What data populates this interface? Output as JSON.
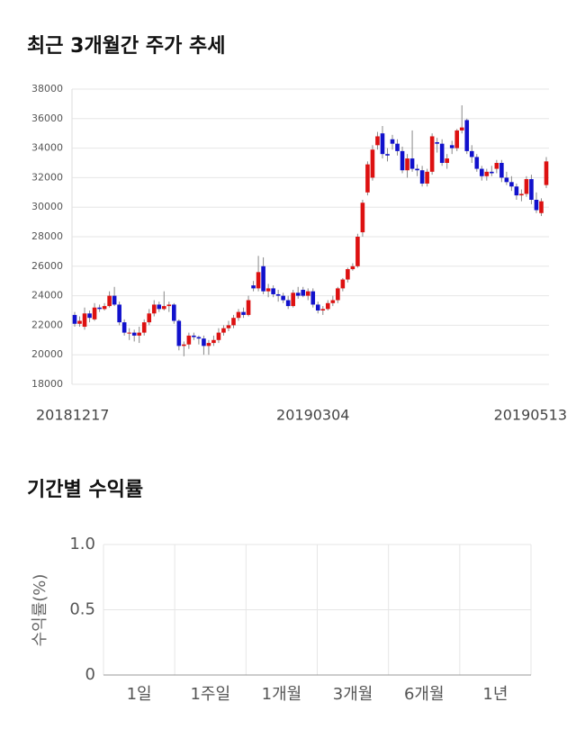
{
  "chart_data": [
    {
      "type": "candlestick",
      "title": "최근 3개월간 주가 추세",
      "up_color": "#dd1111",
      "down_color": "#1111cc",
      "grid": true,
      "ylim": [
        18000,
        38000
      ],
      "yticks": [
        18000,
        20000,
        22000,
        24000,
        26000,
        28000,
        30000,
        32000,
        34000,
        36000,
        38000
      ],
      "categories": [
        "20181217",
        null,
        null,
        null,
        null,
        null,
        null,
        null,
        null,
        null,
        null,
        null,
        null,
        null,
        null,
        null,
        null,
        null,
        null,
        null,
        null,
        null,
        null,
        null,
        null,
        null,
        null,
        null,
        null,
        null,
        null,
        null,
        null,
        null,
        null,
        null,
        null,
        null,
        null,
        null,
        null,
        null,
        null,
        null,
        null,
        null,
        null,
        null,
        "20190304",
        null,
        null,
        null,
        null,
        null,
        null,
        null,
        null,
        null,
        null,
        null,
        null,
        null,
        null,
        null,
        null,
        null,
        null,
        null,
        null,
        null,
        null,
        null,
        null,
        null,
        null,
        null,
        null,
        null,
        null,
        null,
        null,
        null,
        null,
        null,
        null,
        null,
        null,
        null,
        null,
        null,
        null,
        null,
        null,
        null,
        null,
        "20190513"
      ],
      "ohlc": [
        [
          22700,
          22900,
          21900,
          22100
        ],
        [
          22100,
          22600,
          21900,
          22300
        ],
        [
          21900,
          23200,
          21700,
          22800
        ],
        [
          22800,
          23000,
          22200,
          22500
        ],
        [
          22400,
          23500,
          22300,
          23200
        ],
        [
          23200,
          23400,
          22900,
          23100
        ],
        [
          23100,
          23500,
          23000,
          23300
        ],
        [
          23300,
          24300,
          23200,
          24000
        ],
        [
          24000,
          24600,
          23300,
          23400
        ],
        [
          23400,
          23600,
          22000,
          22200
        ],
        [
          22200,
          22400,
          21300,
          21500
        ],
        [
          21500,
          21800,
          21000,
          21500
        ],
        [
          21500,
          21700,
          20900,
          21300
        ],
        [
          21300,
          21900,
          20800,
          21500
        ],
        [
          21500,
          22400,
          21300,
          22200
        ],
        [
          22200,
          23100,
          22000,
          22800
        ],
        [
          22800,
          23700,
          22600,
          23400
        ],
        [
          23400,
          23600,
          22900,
          23100
        ],
        [
          23100,
          24300,
          23000,
          23300
        ],
        [
          23300,
          23600,
          22900,
          23400
        ],
        [
          23400,
          23500,
          22100,
          22300
        ],
        [
          22300,
          22400,
          20300,
          20600
        ],
        [
          20600,
          20900,
          19900,
          20700
        ],
        [
          20700,
          21500,
          20400,
          21300
        ],
        [
          21300,
          21500,
          21000,
          21200
        ],
        [
          21200,
          21300,
          20700,
          21100
        ],
        [
          21100,
          21300,
          20000,
          20600
        ],
        [
          20600,
          21000,
          20000,
          20800
        ],
        [
          20800,
          21300,
          20600,
          21000
        ],
        [
          21000,
          21800,
          20800,
          21500
        ],
        [
          21500,
          22000,
          21300,
          21800
        ],
        [
          21800,
          22300,
          21600,
          22000
        ],
        [
          22000,
          22700,
          21800,
          22500
        ],
        [
          22500,
          23100,
          22300,
          22900
        ],
        [
          22900,
          23200,
          22500,
          22700
        ],
        [
          22700,
          24000,
          22600,
          23700
        ],
        [
          24700,
          25000,
          24300,
          24500
        ],
        [
          24500,
          26700,
          24300,
          25600
        ],
        [
          26000,
          26600,
          24100,
          24300
        ],
        [
          24300,
          24800,
          23900,
          24500
        ],
        [
          24500,
          24700,
          23900,
          24100
        ],
        [
          24100,
          24400,
          23600,
          24000
        ],
        [
          24000,
          24200,
          23500,
          23700
        ],
        [
          23700,
          24000,
          23100,
          23300
        ],
        [
          23300,
          24400,
          23200,
          24200
        ],
        [
          24200,
          24600,
          23800,
          24000
        ],
        [
          24400,
          24600,
          23900,
          24000
        ],
        [
          24000,
          24500,
          23700,
          24300
        ],
        [
          24300,
          24500,
          23200,
          23400
        ],
        [
          23400,
          23600,
          22800,
          23000
        ],
        [
          23000,
          23300,
          22700,
          23100
        ],
        [
          23100,
          23700,
          23000,
          23500
        ],
        [
          23500,
          24000,
          23300,
          23700
        ],
        [
          23700,
          24600,
          23500,
          24500
        ],
        [
          24500,
          25200,
          24300,
          25100
        ],
        [
          25100,
          25900,
          24900,
          25800
        ],
        [
          25800,
          26200,
          25700,
          26000
        ],
        [
          26000,
          28200,
          25900,
          28000
        ],
        [
          28300,
          30500,
          28000,
          30300
        ],
        [
          31000,
          33100,
          30800,
          32900
        ],
        [
          32000,
          34200,
          31800,
          33900
        ],
        [
          34200,
          35100,
          33900,
          34800
        ],
        [
          35000,
          35500,
          33300,
          33600
        ],
        [
          33600,
          34000,
          33100,
          33500
        ],
        [
          34600,
          34900,
          33900,
          34300
        ],
        [
          34300,
          34600,
          33500,
          33800
        ],
        [
          33800,
          34100,
          32300,
          32500
        ],
        [
          32500,
          33600,
          32000,
          33300
        ],
        [
          33300,
          35200,
          32400,
          32600
        ],
        [
          32600,
          32900,
          32100,
          32500
        ],
        [
          32500,
          32800,
          31400,
          31600
        ],
        [
          31600,
          32600,
          31400,
          32400
        ],
        [
          32400,
          35000,
          32200,
          34800
        ],
        [
          34400,
          34700,
          33700,
          34300
        ],
        [
          34300,
          34600,
          32800,
          33000
        ],
        [
          33000,
          33600,
          32600,
          33300
        ],
        [
          34200,
          34500,
          33600,
          34000
        ],
        [
          34000,
          35300,
          33800,
          35200
        ],
        [
          35200,
          36900,
          35000,
          35400
        ],
        [
          35900,
          36000,
          33600,
          33800
        ],
        [
          33800,
          34200,
          33000,
          33400
        ],
        [
          33400,
          33600,
          32400,
          32600
        ],
        [
          32600,
          32800,
          31800,
          32100
        ],
        [
          32100,
          32600,
          31800,
          32400
        ],
        [
          32400,
          32800,
          32100,
          32300
        ],
        [
          32600,
          33200,
          32300,
          33000
        ],
        [
          33000,
          33200,
          31700,
          32000
        ],
        [
          32000,
          32400,
          31500,
          31700
        ],
        [
          31700,
          32100,
          31100,
          31400
        ],
        [
          31400,
          31600,
          30500,
          30800
        ],
        [
          30800,
          31200,
          30400,
          30900
        ],
        [
          30900,
          32100,
          30700,
          31900
        ],
        [
          31900,
          32200,
          30200,
          30500
        ],
        [
          30500,
          31000,
          29600,
          29800
        ],
        [
          29600,
          30600,
          29400,
          30400
        ],
        [
          31500,
          33400,
          31300,
          33100
        ]
      ]
    },
    {
      "type": "bar",
      "title": "기간별 수익률",
      "ylabel": "수익률(%)",
      "grid": true,
      "color": "#4472c4",
      "categories": [
        "1일",
        "1주일",
        "1개월",
        "3개월",
        "6개월",
        "1년"
      ],
      "values": [
        null,
        null,
        null,
        null,
        null,
        null
      ],
      "ylim": [
        0,
        1
      ],
      "yticks": [
        0,
        0.5,
        {
          "value": 1,
          "label": "1.0"
        }
      ]
    }
  ]
}
